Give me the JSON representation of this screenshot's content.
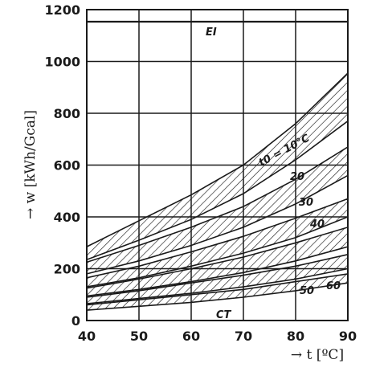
{
  "chart_data": {
    "type": "area",
    "xlabel": "→ t [ºC]",
    "ylabel": "→ w [kWh/Gcal]",
    "xlim": [
      40,
      90
    ],
    "ylim": [
      0,
      1200
    ],
    "x_ticks": [
      40,
      50,
      60,
      70,
      80,
      90
    ],
    "y_ticks": [
      0,
      200,
      400,
      600,
      800,
      1000,
      1200
    ],
    "grid": true,
    "x": [
      40,
      50,
      60,
      70,
      80,
      90
    ],
    "series": [
      {
        "name": "t0 = 10°C",
        "upper": [
          285,
          385,
          485,
          600,
          760,
          955
        ],
        "lower": [
          235,
          310,
          390,
          490,
          620,
          770
        ]
      },
      {
        "name": "20",
        "upper": [
          225,
          290,
          360,
          440,
          545,
          670
        ],
        "lower": [
          180,
          230,
          290,
          360,
          450,
          560
        ]
      },
      {
        "name": "30",
        "upper": [
          165,
          210,
          265,
          325,
          395,
          470
        ],
        "lower": [
          130,
          165,
          210,
          260,
          320,
          400
        ]
      },
      {
        "name": "40",
        "upper": [
          125,
          160,
          200,
          245,
          300,
          360
        ],
        "lower": [
          95,
          120,
          150,
          185,
          230,
          285
        ]
      },
      {
        "name": "50",
        "upper": [
          90,
          115,
          145,
          175,
          210,
          255
        ],
        "lower": [
          65,
          85,
          105,
          130,
          160,
          200
        ]
      },
      {
        "name": "60",
        "upper": [
          60,
          80,
          100,
          120,
          150,
          180
        ],
        "lower": [
          40,
          55,
          70,
          90,
          115,
          145
        ]
      }
    ],
    "annotations": {
      "ei": "EI",
      "t0": "t0 = 10°C",
      "l20": "20",
      "l30": "30",
      "l40": "40",
      "l50": "50",
      "l60": "60",
      "ct": "CT"
    },
    "colors": {
      "ink": "#1a1a1a",
      "paper": "#ffffff"
    }
  }
}
